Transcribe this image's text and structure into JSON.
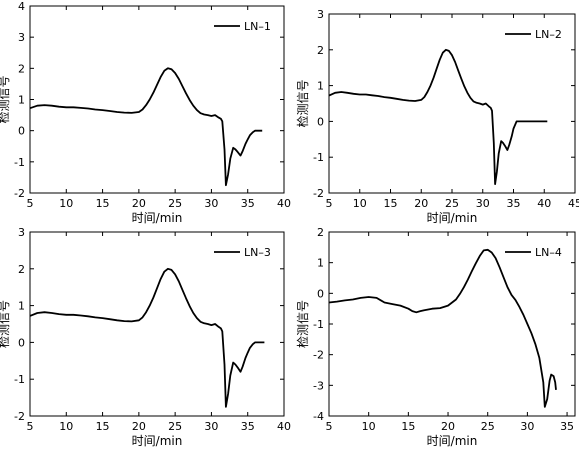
{
  "chart_data": [
    {
      "type": "line",
      "legend": "LN–1",
      "xlabel": "时间/min",
      "ylabel": "检测信号",
      "xlim": [
        5,
        40
      ],
      "ylim": [
        -2,
        4
      ],
      "xticks": [
        5,
        10,
        15,
        20,
        25,
        30,
        35,
        40
      ],
      "yticks": [
        -2,
        -1,
        0,
        1,
        2,
        3,
        4
      ],
      "series": [
        {
          "x": [
            5,
            6,
            7,
            8,
            9,
            10,
            11,
            12,
            13,
            14,
            15,
            16,
            17,
            18,
            19,
            20,
            20.5,
            21,
            21.5,
            22,
            22.5,
            23,
            23.5,
            24,
            24.5,
            25,
            25.5,
            26,
            26.5,
            27,
            27.5,
            28,
            28.5,
            29,
            29.5,
            30,
            30.5,
            31,
            31.3,
            31.5,
            31.8,
            32,
            32.3,
            32.6,
            33,
            33.3,
            33.6,
            34,
            34.3,
            34.7,
            35,
            35.3,
            35.7,
            36,
            36.5,
            37
          ],
          "y": [
            0.72,
            0.8,
            0.82,
            0.8,
            0.77,
            0.75,
            0.75,
            0.73,
            0.71,
            0.68,
            0.66,
            0.63,
            0.6,
            0.58,
            0.57,
            0.6,
            0.68,
            0.82,
            1.0,
            1.22,
            1.47,
            1.72,
            1.92,
            2.0,
            1.97,
            1.85,
            1.66,
            1.43,
            1.2,
            0.98,
            0.8,
            0.66,
            0.56,
            0.52,
            0.5,
            0.47,
            0.5,
            0.42,
            0.38,
            0.3,
            -0.6,
            -1.75,
            -1.4,
            -0.9,
            -0.55,
            -0.6,
            -0.68,
            -0.8,
            -0.66,
            -0.42,
            -0.28,
            -0.15,
            -0.05,
            0.0,
            0.0,
            0.0
          ]
        }
      ]
    },
    {
      "type": "line",
      "legend": "LN–2",
      "xlabel": "时间/min",
      "ylabel": "检测信号",
      "xlim": [
        5,
        45
      ],
      "ylim": [
        -2,
        3
      ],
      "xticks": [
        5,
        10,
        15,
        20,
        25,
        30,
        35,
        40,
        45
      ],
      "yticks": [
        -2,
        -1,
        0,
        1,
        2,
        3
      ],
      "series": [
        {
          "x": [
            5,
            6,
            7,
            8,
            9,
            10,
            11,
            12,
            13,
            14,
            15,
            16,
            17,
            18,
            19,
            20,
            20.5,
            21,
            21.5,
            22,
            22.5,
            23,
            23.5,
            24,
            24.5,
            25,
            25.5,
            26,
            26.5,
            27,
            27.5,
            28,
            28.5,
            29,
            29.5,
            30,
            30.5,
            31,
            31.3,
            31.5,
            31.8,
            32,
            32.3,
            32.6,
            33,
            33.3,
            33.6,
            34,
            34.3,
            34.7,
            35,
            35.5,
            36,
            37,
            38,
            39,
            40.5
          ],
          "y": [
            0.72,
            0.8,
            0.82,
            0.8,
            0.77,
            0.75,
            0.75,
            0.73,
            0.71,
            0.68,
            0.66,
            0.63,
            0.6,
            0.58,
            0.57,
            0.6,
            0.68,
            0.82,
            1.0,
            1.22,
            1.47,
            1.72,
            1.92,
            2.0,
            1.97,
            1.85,
            1.66,
            1.43,
            1.2,
            0.98,
            0.8,
            0.66,
            0.56,
            0.52,
            0.5,
            0.47,
            0.5,
            0.42,
            0.38,
            0.3,
            -0.6,
            -1.75,
            -1.4,
            -0.9,
            -0.55,
            -0.6,
            -0.68,
            -0.8,
            -0.66,
            -0.42,
            -0.2,
            0.0,
            0.0,
            0.0,
            0.0,
            0.0,
            0.0
          ]
        }
      ]
    },
    {
      "type": "line",
      "legend": "LN–3",
      "xlabel": "时间/min",
      "ylabel": "检测信号",
      "xlim": [
        5,
        40
      ],
      "ylim": [
        -2,
        3
      ],
      "xticks": [
        5,
        10,
        15,
        20,
        25,
        30,
        35,
        40
      ],
      "yticks": [
        -2,
        -1,
        0,
        1,
        2,
        3
      ],
      "series": [
        {
          "x": [
            5,
            6,
            7,
            8,
            9,
            10,
            11,
            12,
            13,
            14,
            15,
            16,
            17,
            18,
            19,
            20,
            20.5,
            21,
            21.5,
            22,
            22.5,
            23,
            23.5,
            24,
            24.5,
            25,
            25.5,
            26,
            26.5,
            27,
            27.5,
            28,
            28.5,
            29,
            29.5,
            30,
            30.5,
            31,
            31.3,
            31.5,
            31.8,
            32,
            32.3,
            32.6,
            33,
            33.3,
            33.6,
            34,
            34.3,
            34.7,
            35,
            35.3,
            35.7,
            36,
            36.5,
            37.3
          ],
          "y": [
            0.72,
            0.8,
            0.82,
            0.8,
            0.77,
            0.75,
            0.75,
            0.73,
            0.71,
            0.68,
            0.66,
            0.63,
            0.6,
            0.58,
            0.57,
            0.6,
            0.68,
            0.82,
            1.0,
            1.22,
            1.47,
            1.72,
            1.92,
            2.0,
            1.97,
            1.85,
            1.66,
            1.43,
            1.2,
            0.98,
            0.8,
            0.66,
            0.56,
            0.52,
            0.5,
            0.47,
            0.5,
            0.42,
            0.38,
            0.3,
            -0.6,
            -1.75,
            -1.4,
            -0.9,
            -0.55,
            -0.6,
            -0.68,
            -0.8,
            -0.66,
            -0.42,
            -0.28,
            -0.15,
            -0.05,
            0.0,
            0.0,
            0.0
          ]
        }
      ]
    },
    {
      "type": "line",
      "legend": "LN–4",
      "xlabel": "时间/min",
      "ylabel": "检测信号",
      "xlim": [
        5,
        36
      ],
      "ylim": [
        -4,
        2
      ],
      "xticks": [
        5,
        10,
        15,
        20,
        25,
        30,
        35
      ],
      "yticks": [
        -4,
        -3,
        -2,
        -1,
        0,
        1,
        2
      ],
      "series": [
        {
          "x": [
            5,
            6,
            7,
            8,
            9,
            10,
            11,
            12,
            13,
            14,
            15,
            15.5,
            16,
            16.5,
            17,
            18,
            19,
            20,
            21,
            21.5,
            22,
            22.5,
            23,
            23.5,
            24,
            24.5,
            25,
            25.5,
            26,
            26.5,
            27,
            27.5,
            28,
            28.5,
            29,
            29.5,
            30,
            30.5,
            31,
            31.5,
            32,
            32.2,
            32.5,
            32.8,
            33,
            33.3,
            33.5,
            33.6
          ],
          "y": [
            -0.3,
            -0.27,
            -0.23,
            -0.2,
            -0.15,
            -0.12,
            -0.15,
            -0.3,
            -0.35,
            -0.4,
            -0.5,
            -0.58,
            -0.62,
            -0.58,
            -0.55,
            -0.5,
            -0.48,
            -0.4,
            -0.2,
            -0.02,
            0.2,
            0.45,
            0.72,
            0.98,
            1.22,
            1.4,
            1.42,
            1.33,
            1.15,
            0.85,
            0.52,
            0.2,
            -0.05,
            -0.22,
            -0.45,
            -0.7,
            -1.0,
            -1.3,
            -1.65,
            -2.1,
            -2.9,
            -3.7,
            -3.45,
            -2.85,
            -2.65,
            -2.7,
            -2.9,
            -3.15
          ]
        }
      ]
    }
  ]
}
